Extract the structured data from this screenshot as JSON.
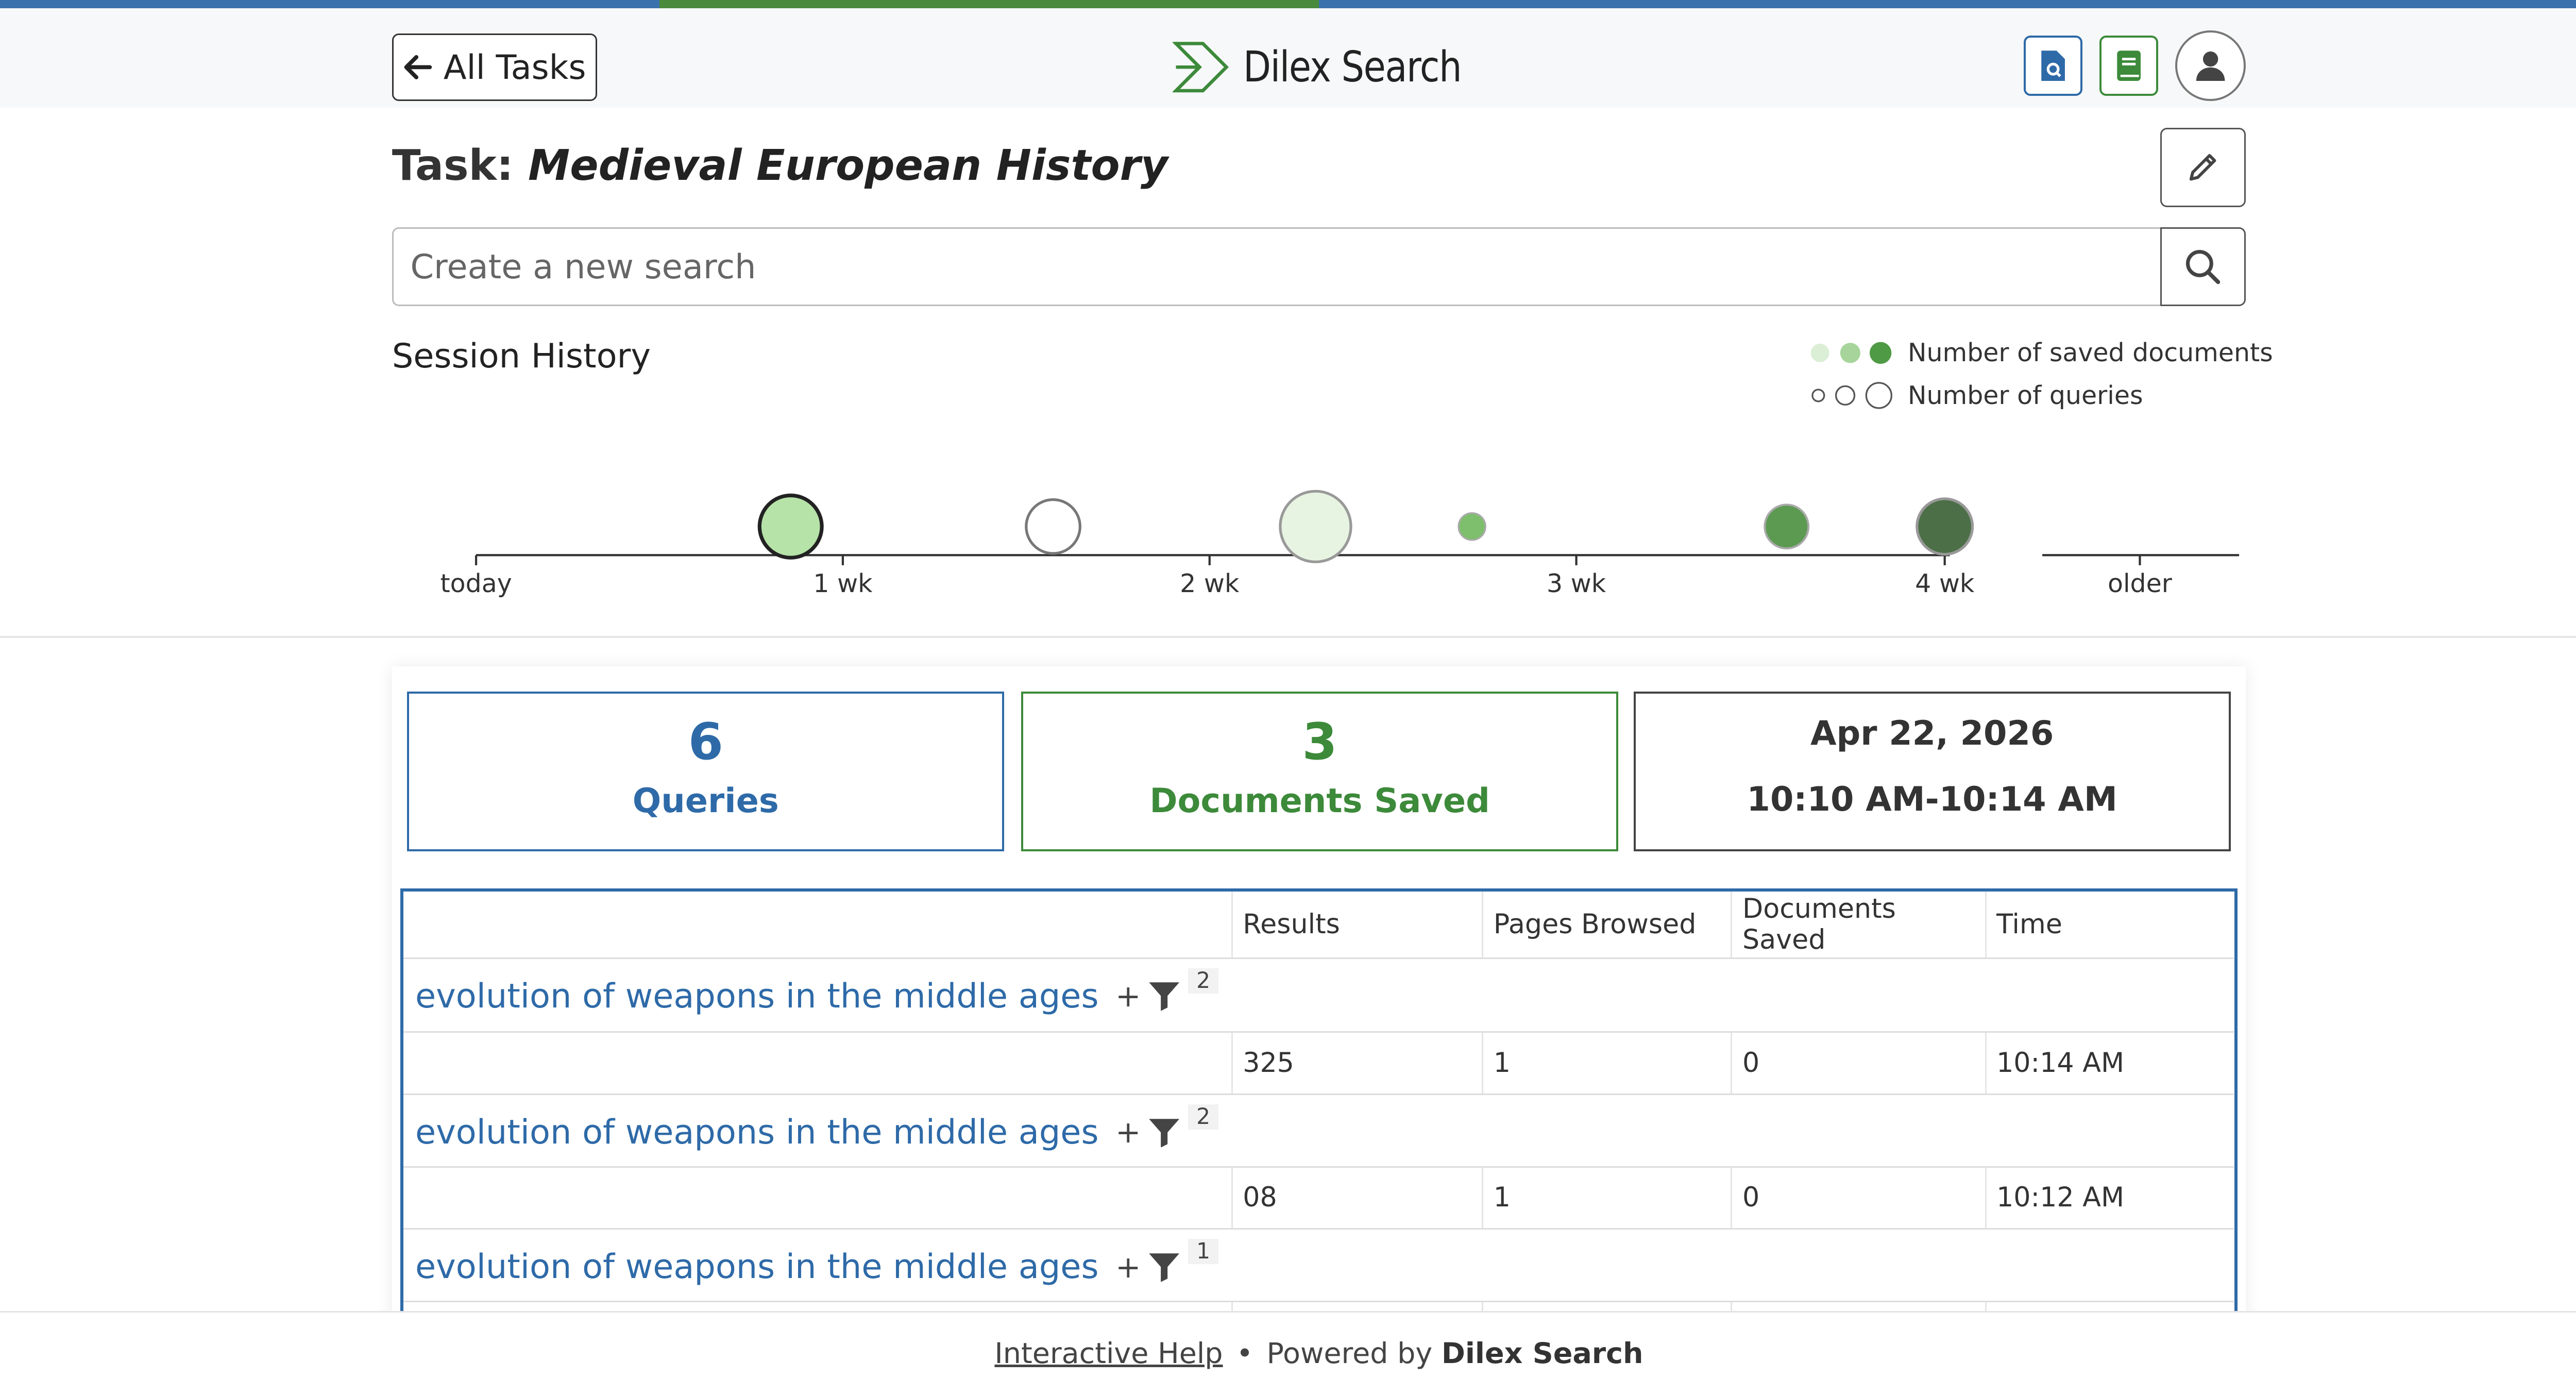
{
  "header": {
    "back_label": "All Tasks",
    "brand_name": "Dilex Search",
    "colors": {
      "blue": "#2e6aa8",
      "green": "#3c8a3a"
    }
  },
  "task": {
    "prefix": "Task:",
    "name": "Medieval European History"
  },
  "search": {
    "placeholder": "Create a new search",
    "value": ""
  },
  "session": {
    "label": "Session History",
    "legend_saved": "Number of saved documents",
    "legend_queries": "Number of queries",
    "axis_labels": [
      "today",
      "1 wk",
      "2 wk",
      "3 wk",
      "4 wk",
      "older"
    ]
  },
  "stats": {
    "queries_count": "6",
    "queries_label": "Queries",
    "docs_count": "3",
    "docs_label": "Documents Saved",
    "date": "Apr 22, 2026",
    "time_range": "10:10 AM-10:14 AM"
  },
  "table": {
    "headers": [
      "Results",
      "Pages Browsed",
      "Documents Saved",
      "Time"
    ],
    "rows": [
      {
        "query": "evolution of weapons in the middle ages",
        "plus": "+",
        "filters": "2",
        "results": "325",
        "pages": "1",
        "saved": "0",
        "time": "10:14 AM"
      },
      {
        "query": "evolution of weapons in the middle ages",
        "plus": "+",
        "filters": "2",
        "results": "08",
        "pages": "1",
        "saved": "0",
        "time": "10:12 AM"
      },
      {
        "query": "evolution of weapons in the middle ages",
        "plus": "+",
        "filters": "1",
        "results": "",
        "pages": "",
        "saved": "",
        "time": ""
      }
    ]
  },
  "footer": {
    "help": "Interactive Help",
    "powered": "Powered by",
    "brand": "Dilex Search"
  }
}
